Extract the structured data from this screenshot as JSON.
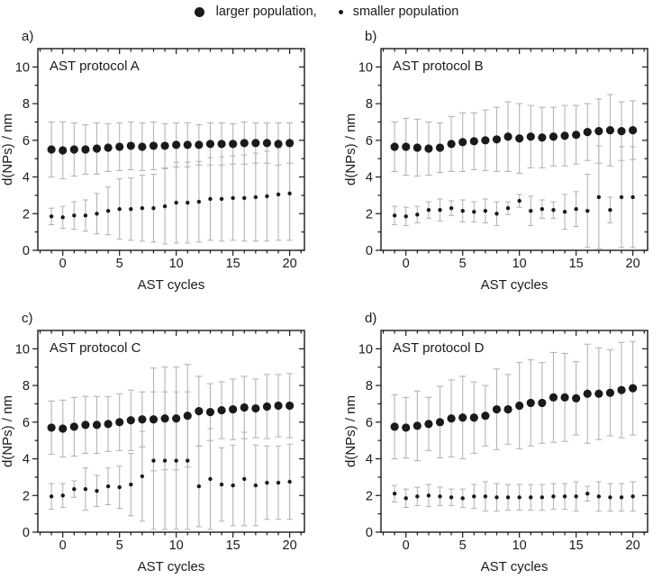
{
  "legend": {
    "larger_label": "larger population,",
    "smaller_label": "smaller population"
  },
  "colors": {
    "point": "#1a1a1a",
    "error_bar": "#b5b5b5",
    "axis": "#1a1a1a",
    "background": "#ffffff"
  },
  "axes": {
    "xlabel": "AST cycles",
    "ylabel": "d(NPs) / nm",
    "xticks": [
      0,
      5,
      10,
      15,
      20
    ],
    "yticks": [
      0,
      2,
      4,
      6,
      8,
      10
    ],
    "xlim": [
      -2.2,
      21.3
    ],
    "ylim": [
      0,
      11
    ],
    "grid": false
  },
  "chart_data": [
    {
      "type": "scatter",
      "panel_label": "a)",
      "title": "AST protocol A",
      "xlabel": "AST cycles",
      "ylabel": "d(NPs) / nm",
      "x": [
        -1,
        0,
        1,
        2,
        3,
        4,
        5,
        6,
        7,
        8,
        9,
        10,
        11,
        12,
        13,
        14,
        15,
        16,
        17,
        18,
        19,
        20
      ],
      "series": [
        {
          "name": "larger population",
          "y": [
            5.5,
            5.45,
            5.5,
            5.5,
            5.55,
            5.6,
            5.65,
            5.7,
            5.65,
            5.7,
            5.7,
            5.75,
            5.75,
            5.75,
            5.8,
            5.8,
            5.8,
            5.85,
            5.85,
            5.85,
            5.8,
            5.85
          ],
          "err": [
            1.5,
            1.55,
            1.45,
            1.35,
            1.4,
            1.3,
            1.3,
            1.3,
            1.3,
            1.3,
            1.2,
            1.2,
            1.2,
            1.1,
            1.15,
            1.15,
            1.1,
            1.15,
            1.1,
            1.1,
            1.15,
            1.1
          ]
        },
        {
          "name": "smaller population",
          "y": [
            1.85,
            1.8,
            1.9,
            1.9,
            2.0,
            2.15,
            2.25,
            2.25,
            2.3,
            2.3,
            2.4,
            2.6,
            2.6,
            2.65,
            2.8,
            2.8,
            2.85,
            2.85,
            2.9,
            2.95,
            3.05,
            3.1
          ],
          "err": [
            0.45,
            0.6,
            0.75,
            0.85,
            1.1,
            1.3,
            1.65,
            1.7,
            1.8,
            1.85,
            2.05,
            2.2,
            2.2,
            2.2,
            2.25,
            2.3,
            2.3,
            2.35,
            2.4,
            2.45,
            2.5,
            2.55
          ]
        }
      ]
    },
    {
      "type": "scatter",
      "panel_label": "b)",
      "title": "AST protocol B",
      "xlabel": "AST cycles",
      "ylabel": "d(NPs) / nm",
      "x": [
        -1,
        0,
        1,
        2,
        3,
        4,
        5,
        6,
        7,
        8,
        9,
        10,
        11,
        12,
        13,
        14,
        15,
        16,
        17,
        18,
        19,
        20
      ],
      "series": [
        {
          "name": "larger population",
          "y": [
            5.65,
            5.65,
            5.6,
            5.55,
            5.6,
            5.8,
            5.9,
            5.95,
            6.0,
            6.05,
            6.2,
            6.1,
            6.2,
            6.15,
            6.2,
            6.25,
            6.3,
            6.45,
            6.5,
            6.55,
            6.5,
            6.55
          ],
          "err": [
            1.35,
            1.55,
            1.55,
            1.45,
            1.35,
            1.5,
            1.6,
            1.55,
            1.65,
            1.75,
            1.9,
            1.9,
            1.7,
            1.65,
            1.6,
            1.65,
            1.6,
            1.55,
            1.75,
            1.95,
            1.6,
            1.6
          ]
        },
        {
          "name": "smaller population",
          "y": [
            1.9,
            1.85,
            1.95,
            2.2,
            2.2,
            2.3,
            2.15,
            2.1,
            2.15,
            2.0,
            2.3,
            2.7,
            2.15,
            2.25,
            2.2,
            2.1,
            2.25,
            2.15,
            2.9,
            2.2,
            2.9,
            2.9
          ],
          "err": [
            0.5,
            0.5,
            0.45,
            0.45,
            0.6,
            0.4,
            0.6,
            0.55,
            0.65,
            0.65,
            0.35,
            0.35,
            0.8,
            0.5,
            0.45,
            0.95,
            0.95,
            2.0,
            2.8,
            0.7,
            2.75,
            2.75
          ]
        }
      ]
    },
    {
      "type": "scatter",
      "panel_label": "c)",
      "title": "AST protocol C",
      "xlabel": "AST cycles",
      "ylabel": "d(NPs) / nm",
      "x": [
        -1,
        0,
        1,
        2,
        3,
        4,
        5,
        6,
        7,
        8,
        9,
        10,
        11,
        12,
        13,
        14,
        15,
        16,
        17,
        18,
        19,
        20
      ],
      "series": [
        {
          "name": "larger population",
          "y": [
            5.7,
            5.65,
            5.75,
            5.85,
            5.85,
            5.9,
            6.0,
            6.1,
            6.15,
            6.15,
            6.2,
            6.2,
            6.35,
            6.6,
            6.55,
            6.65,
            6.7,
            6.8,
            6.75,
            6.85,
            6.9,
            6.9
          ],
          "err": [
            1.45,
            1.55,
            1.6,
            1.55,
            1.55,
            1.5,
            1.55,
            1.65,
            1.5,
            2.8,
            2.8,
            2.8,
            2.8,
            1.9,
            1.55,
            1.55,
            1.65,
            1.7,
            1.6,
            1.75,
            1.7,
            1.75
          ]
        },
        {
          "name": "smaller population",
          "y": [
            1.95,
            2.0,
            2.35,
            2.35,
            2.25,
            2.5,
            2.45,
            2.6,
            3.05,
            3.9,
            3.9,
            3.9,
            3.9,
            2.5,
            2.9,
            2.6,
            2.55,
            2.9,
            2.55,
            2.7,
            2.7,
            2.75
          ],
          "err": [
            0.7,
            0.65,
            0.45,
            1.15,
            0.85,
            1.0,
            1.15,
            1.7,
            2.45,
            3.75,
            3.75,
            3.75,
            3.75,
            2.2,
            2.75,
            2.0,
            2.2,
            2.55,
            2.2,
            2.0,
            2.0,
            2.05
          ]
        }
      ]
    },
    {
      "type": "scatter",
      "panel_label": "d)",
      "title": "AST protocol D",
      "xlabel": "AST cycles",
      "ylabel": "d(NPs) / nm",
      "x": [
        -1,
        0,
        1,
        2,
        3,
        4,
        5,
        6,
        7,
        8,
        9,
        10,
        11,
        12,
        13,
        14,
        15,
        16,
        17,
        18,
        19,
        20
      ],
      "series": [
        {
          "name": "larger population",
          "y": [
            5.75,
            5.7,
            5.8,
            5.9,
            6.0,
            6.2,
            6.25,
            6.25,
            6.35,
            6.7,
            6.7,
            6.9,
            7.05,
            7.05,
            7.35,
            7.35,
            7.3,
            7.55,
            7.55,
            7.6,
            7.75,
            7.85
          ],
          "err": [
            1.75,
            1.65,
            1.9,
            1.45,
            1.95,
            2.1,
            2.25,
            1.95,
            1.65,
            2.2,
            1.9,
            2.35,
            2.35,
            2.2,
            2.45,
            2.4,
            2.0,
            2.7,
            2.5,
            2.35,
            2.6,
            2.55
          ]
        },
        {
          "name": "smaller population",
          "y": [
            2.1,
            1.85,
            1.95,
            2.0,
            1.95,
            1.9,
            1.85,
            1.95,
            1.95,
            1.9,
            1.9,
            1.9,
            1.9,
            1.9,
            1.95,
            1.95,
            1.95,
            2.1,
            1.95,
            1.9,
            1.9,
            1.95
          ],
          "err": [
            0.45,
            0.5,
            0.5,
            0.6,
            0.5,
            0.45,
            0.5,
            0.65,
            0.8,
            0.75,
            0.7,
            0.7,
            0.7,
            0.7,
            0.7,
            0.7,
            0.8,
            0.4,
            0.8,
            0.75,
            0.75,
            0.8
          ]
        }
      ]
    }
  ]
}
